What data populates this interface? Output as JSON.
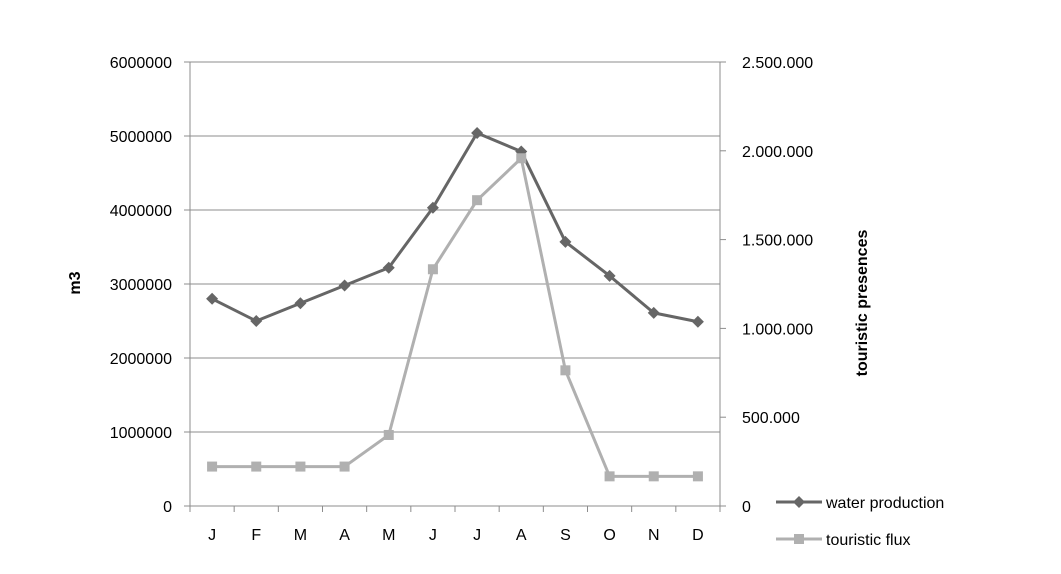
{
  "chart_data": {
    "type": "line",
    "categories": [
      "J",
      "F",
      "M",
      "A",
      "M",
      "J",
      "J",
      "A",
      "S",
      "O",
      "N",
      "D"
    ],
    "ylabel": "m3",
    "y2label": "touristic presences",
    "ylim": [
      0,
      6000000
    ],
    "y2lim": [
      0,
      2500000
    ],
    "yticks": [
      "0",
      "1000000",
      "2000000",
      "3000000",
      "4000000",
      "5000000",
      "6000000"
    ],
    "y2ticks": [
      "0",
      "500.000",
      "1.000.000",
      "1.500.000",
      "2.000.000",
      "2.500.000"
    ],
    "grid": true,
    "legend_position": "bottom-right",
    "series": [
      {
        "name": "water production",
        "axis": "left",
        "color": "#666666",
        "marker": "diamond",
        "values": [
          2800000,
          2500000,
          2740000,
          2980000,
          3220000,
          4030000,
          5040000,
          4790000,
          3570000,
          3110000,
          2610000,
          2490000
        ]
      },
      {
        "name": "touristic flux",
        "axis": "right",
        "color": "#b0b0b0",
        "marker": "square",
        "values": [
          222000,
          222000,
          222000,
          222000,
          400000,
          1333000,
          1722000,
          1958000,
          764000,
          167000,
          167000,
          167000
        ]
      }
    ]
  }
}
